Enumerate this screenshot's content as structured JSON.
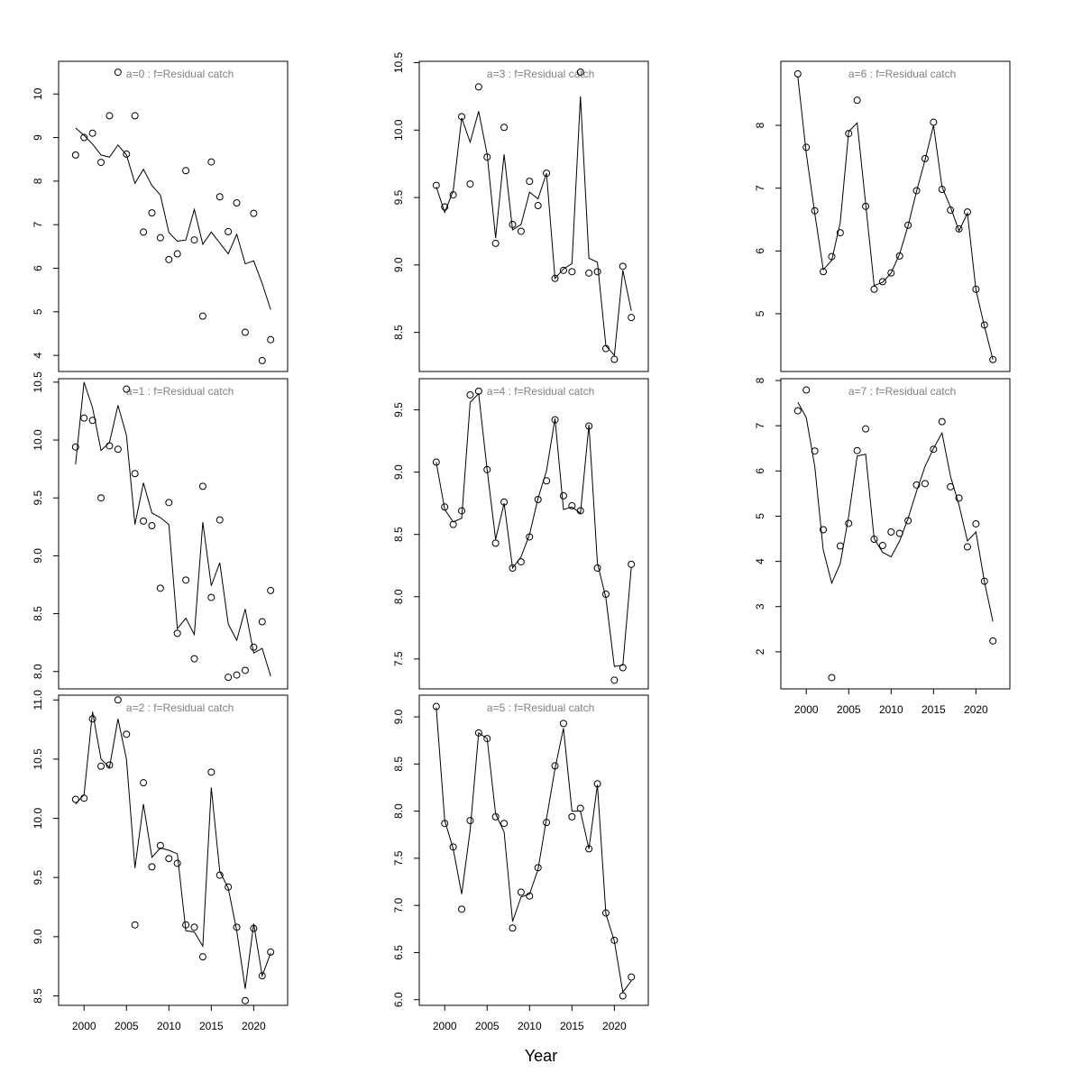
{
  "xlabel": "Year",
  "chart_data": [
    {
      "type": "line",
      "title": "a=0  :  f=Residual catch",
      "x": [
        1999,
        2000,
        2001,
        2002,
        2003,
        2004,
        2005,
        2006,
        2007,
        2008,
        2009,
        2010,
        2011,
        2012,
        2013,
        2014,
        2015,
        2016,
        2017,
        2018,
        2019,
        2020,
        2021,
        2022
      ],
      "xlim": [
        1997,
        2024
      ],
      "ylim": [
        3.63,
        10.75
      ],
      "yticks": [
        4,
        5,
        6,
        7,
        8,
        9,
        10
      ],
      "series": [
        {
          "style": "points",
          "color": "#000000",
          "values": [
            8.6,
            9.0,
            9.1,
            8.43,
            9.5,
            10.5,
            8.62,
            9.5,
            6.83,
            7.27,
            6.7,
            6.2,
            6.33,
            8.24,
            6.65,
            4.9,
            8.44,
            7.64,
            6.84,
            7.5,
            4.53,
            7.26,
            3.88,
            4.36
          ]
        },
        {
          "style": "line",
          "color": "#000000",
          "values": [
            9.22,
            9.05,
            8.85,
            8.6,
            8.55,
            8.83,
            8.6,
            7.95,
            8.27,
            7.9,
            7.68,
            6.82,
            6.62,
            6.65,
            7.35,
            6.55,
            6.83,
            6.58,
            6.33,
            6.78,
            6.1,
            6.17,
            5.65,
            5.05
          ]
        }
      ]
    },
    {
      "type": "line",
      "title": "a=1  :  f=Residual catch",
      "x": [
        1999,
        2000,
        2001,
        2002,
        2003,
        2004,
        2005,
        2006,
        2007,
        2008,
        2009,
        2010,
        2011,
        2012,
        2013,
        2014,
        2015,
        2016,
        2017,
        2018,
        2019,
        2020,
        2021,
        2022
      ],
      "xlim": [
        1997,
        2024
      ],
      "ylim": [
        7.85,
        10.53
      ],
      "yticks": [
        {
          "value": 8,
          "label": "8.0"
        },
        8.5,
        {
          "value": 9,
          "label": "9.0"
        },
        9.5,
        {
          "value": 10,
          "label": "10.0"
        },
        10.5
      ],
      "series": [
        {
          "style": "points",
          "color": "#000000",
          "values": [
            9.94,
            10.19,
            10.17,
            9.5,
            9.95,
            9.92,
            10.44,
            9.71,
            9.3,
            9.26,
            8.72,
            9.46,
            8.33,
            8.79,
            8.11,
            9.6,
            8.64,
            9.31,
            7.95,
            7.97,
            8.01,
            8.21,
            8.43,
            8.7
          ]
        },
        {
          "style": "line",
          "color": "#000000",
          "values": [
            9.79,
            10.5,
            10.28,
            9.91,
            9.98,
            10.3,
            10.04,
            9.27,
            9.63,
            9.37,
            9.33,
            9.27,
            8.37,
            8.46,
            8.32,
            9.29,
            8.74,
            8.94,
            8.41,
            8.27,
            8.54,
            8.16,
            8.2,
            7.96
          ]
        }
      ]
    },
    {
      "type": "line",
      "title": "a=2  :  f=Residual catch",
      "x": [
        1999,
        2000,
        2001,
        2002,
        2003,
        2004,
        2005,
        2006,
        2007,
        2008,
        2009,
        2010,
        2011,
        2012,
        2013,
        2014,
        2015,
        2016,
        2017,
        2018,
        2019,
        2020,
        2021,
        2022
      ],
      "xlim": [
        1997,
        2024
      ],
      "ylim": [
        8.42,
        11.04
      ],
      "yticks": [
        8.5,
        {
          "value": 9,
          "label": "9.0"
        },
        9.5,
        {
          "value": 10,
          "label": "10.0"
        },
        10.5,
        {
          "value": 11,
          "label": "11.0"
        }
      ],
      "xticks": [
        2000,
        2005,
        2010,
        2015,
        2020
      ],
      "series": [
        {
          "style": "points",
          "color": "#000000",
          "values": [
            10.16,
            10.17,
            10.84,
            10.44,
            10.45,
            11.0,
            10.71,
            9.1,
            10.3,
            9.59,
            9.77,
            9.66,
            9.62,
            9.1,
            9.08,
            8.83,
            10.39,
            9.52,
            9.42,
            9.08,
            8.46,
            9.07,
            8.67,
            8.87
          ]
        },
        {
          "style": "line",
          "color": "#000000",
          "values": [
            10.12,
            10.2,
            10.9,
            10.5,
            10.43,
            10.84,
            10.5,
            9.58,
            10.12,
            9.67,
            9.75,
            9.73,
            9.7,
            9.05,
            9.04,
            8.92,
            10.26,
            9.55,
            9.41,
            9.05,
            8.56,
            9.11,
            8.67,
            8.86
          ]
        }
      ]
    },
    {
      "type": "line",
      "title": "a=3  :  f=Residual catch",
      "x": [
        1999,
        2000,
        2001,
        2002,
        2003,
        2004,
        2005,
        2006,
        2007,
        2008,
        2009,
        2010,
        2011,
        2012,
        2013,
        2014,
        2015,
        2016,
        2017,
        2018,
        2019,
        2020,
        2021,
        2022
      ],
      "xlim": [
        1997,
        2024
      ],
      "ylim": [
        8.21,
        10.51
      ],
      "yticks": [
        8.5,
        {
          "value": 9,
          "label": "9.0"
        },
        9.5,
        {
          "value": 10,
          "label": "10.0"
        },
        10.5
      ],
      "series": [
        {
          "style": "points",
          "color": "#000000",
          "values": [
            9.59,
            9.43,
            9.52,
            10.1,
            9.6,
            10.32,
            9.8,
            9.16,
            10.02,
            9.3,
            9.25,
            9.62,
            9.44,
            9.68,
            8.9,
            8.96,
            8.95,
            10.43,
            8.94,
            8.95,
            8.38,
            8.3,
            8.99,
            8.61
          ]
        },
        {
          "style": "line",
          "color": "#000000",
          "values": [
            9.58,
            9.39,
            9.55,
            10.09,
            9.91,
            10.14,
            9.82,
            9.2,
            9.82,
            9.26,
            9.3,
            9.54,
            9.49,
            9.68,
            8.9,
            8.97,
            9.01,
            10.25,
            9.05,
            9.02,
            8.4,
            8.33,
            8.96,
            8.66
          ]
        }
      ]
    },
    {
      "type": "line",
      "title": "a=4  :  f=Residual catch",
      "x": [
        1999,
        2000,
        2001,
        2002,
        2003,
        2004,
        2005,
        2006,
        2007,
        2008,
        2009,
        2010,
        2011,
        2012,
        2013,
        2014,
        2015,
        2016,
        2017,
        2018,
        2019,
        2020,
        2021,
        2022
      ],
      "xlim": [
        1997,
        2024
      ],
      "ylim": [
        7.26,
        9.75
      ],
      "yticks": [
        7.5,
        {
          "value": 8,
          "label": "8.0"
        },
        8.5,
        {
          "value": 9,
          "label": "9.0"
        },
        9.5
      ],
      "series": [
        {
          "style": "points",
          "color": "#000000",
          "values": [
            9.08,
            8.72,
            8.58,
            8.69,
            9.62,
            9.65,
            9.02,
            8.43,
            8.76,
            8.23,
            8.28,
            8.48,
            8.78,
            8.93,
            9.42,
            8.81,
            8.73,
            8.69,
            9.37,
            8.23,
            8.02,
            7.33,
            7.43,
            8.26
          ]
        },
        {
          "style": "line",
          "color": "#000000",
          "values": [
            9.08,
            8.7,
            8.6,
            8.63,
            9.56,
            9.63,
            9.02,
            8.46,
            8.75,
            8.23,
            8.32,
            8.5,
            8.79,
            9.01,
            9.43,
            8.7,
            8.72,
            8.67,
            9.38,
            8.27,
            7.99,
            7.44,
            7.45,
            8.24
          ]
        }
      ]
    },
    {
      "type": "line",
      "title": "a=5  :  f=Residual catch",
      "x": [
        1999,
        2000,
        2001,
        2002,
        2003,
        2004,
        2005,
        2006,
        2007,
        2008,
        2009,
        2010,
        2011,
        2012,
        2013,
        2014,
        2015,
        2016,
        2017,
        2018,
        2019,
        2020,
        2021,
        2022
      ],
      "xlim": [
        1997,
        2024
      ],
      "ylim": [
        5.94,
        9.23
      ],
      "yticks": [
        {
          "value": 6,
          "label": "6.0"
        },
        6.5,
        {
          "value": 7,
          "label": "7.0"
        },
        7.5,
        {
          "value": 8,
          "label": "8.0"
        },
        8.5,
        {
          "value": 9,
          "label": "9.0"
        }
      ],
      "xticks": [
        2000,
        2005,
        2010,
        2015,
        2020
      ],
      "series": [
        {
          "style": "points",
          "color": "#000000",
          "values": [
            9.11,
            7.87,
            7.62,
            6.96,
            7.9,
            8.83,
            8.77,
            7.94,
            7.87,
            6.76,
            7.14,
            7.1,
            7.4,
            7.88,
            8.48,
            8.93,
            7.94,
            8.03,
            7.6,
            8.29,
            6.92,
            6.63,
            6.04,
            6.24
          ]
        },
        {
          "style": "line",
          "color": "#000000",
          "values": [
            9.1,
            7.9,
            7.6,
            7.12,
            7.8,
            8.83,
            8.77,
            7.97,
            7.78,
            6.83,
            7.09,
            7.12,
            7.38,
            7.92,
            8.45,
            8.88,
            8.0,
            8.0,
            7.6,
            8.28,
            6.91,
            6.62,
            6.08,
            6.2
          ]
        }
      ]
    },
    {
      "type": "line",
      "title": "a=6  :  f=Residual catch",
      "x": [
        1999,
        2000,
        2001,
        2002,
        2003,
        2004,
        2005,
        2006,
        2007,
        2008,
        2009,
        2010,
        2011,
        2012,
        2013,
        2014,
        2015,
        2016,
        2017,
        2018,
        2019,
        2020,
        2021,
        2022
      ],
      "xlim": [
        1997,
        2024
      ],
      "ylim": [
        4.08,
        9.02
      ],
      "yticks": [
        5,
        6,
        7,
        8
      ],
      "series": [
        {
          "style": "points",
          "color": "#000000",
          "values": [
            8.82,
            7.65,
            6.64,
            5.67,
            5.91,
            6.29,
            7.87,
            8.4,
            6.71,
            5.39,
            5.51,
            5.65,
            5.92,
            6.41,
            6.96,
            7.47,
            8.05,
            6.98,
            6.65,
            6.35,
            6.62,
            5.39,
            4.82,
            4.27
          ]
        },
        {
          "style": "line",
          "color": "#000000",
          "values": [
            8.78,
            7.55,
            6.6,
            5.7,
            5.85,
            6.45,
            7.9,
            8.04,
            6.75,
            5.45,
            5.5,
            5.65,
            5.95,
            6.4,
            6.95,
            7.45,
            8.0,
            7.02,
            6.7,
            6.32,
            6.6,
            5.38,
            4.8,
            4.27
          ]
        }
      ]
    },
    {
      "type": "line",
      "title": "a=7  :  f=Residual catch",
      "x": [
        1999,
        2000,
        2001,
        2002,
        2003,
        2004,
        2005,
        2006,
        2007,
        2008,
        2009,
        2010,
        2011,
        2012,
        2013,
        2014,
        2015,
        2016,
        2017,
        2018,
        2019,
        2020,
        2021,
        2022
      ],
      "xlim": [
        1997,
        2024
      ],
      "ylim": [
        1.18,
        8.04
      ],
      "yticks": [
        2,
        3,
        4,
        5,
        6,
        7,
        8
      ],
      "xticks": [
        2000,
        2005,
        2010,
        2015,
        2020
      ],
      "series": [
        {
          "style": "points",
          "color": "#000000",
          "values": [
            7.33,
            7.79,
            6.44,
            4.7,
            1.43,
            4.34,
            4.84,
            6.45,
            6.93,
            4.49,
            4.35,
            4.65,
            4.62,
            4.9,
            5.69,
            5.72,
            6.48,
            7.09,
            5.65,
            5.4,
            4.32,
            4.83,
            3.56,
            2.24
          ]
        },
        {
          "style": "line",
          "color": "#000000",
          "values": [
            7.52,
            7.18,
            6.1,
            4.25,
            3.52,
            3.95,
            5.0,
            6.33,
            6.37,
            4.5,
            4.2,
            4.1,
            4.45,
            4.95,
            5.55,
            6.1,
            6.5,
            6.84,
            5.88,
            5.25,
            4.45,
            4.65,
            3.55,
            2.67
          ]
        }
      ]
    }
  ]
}
